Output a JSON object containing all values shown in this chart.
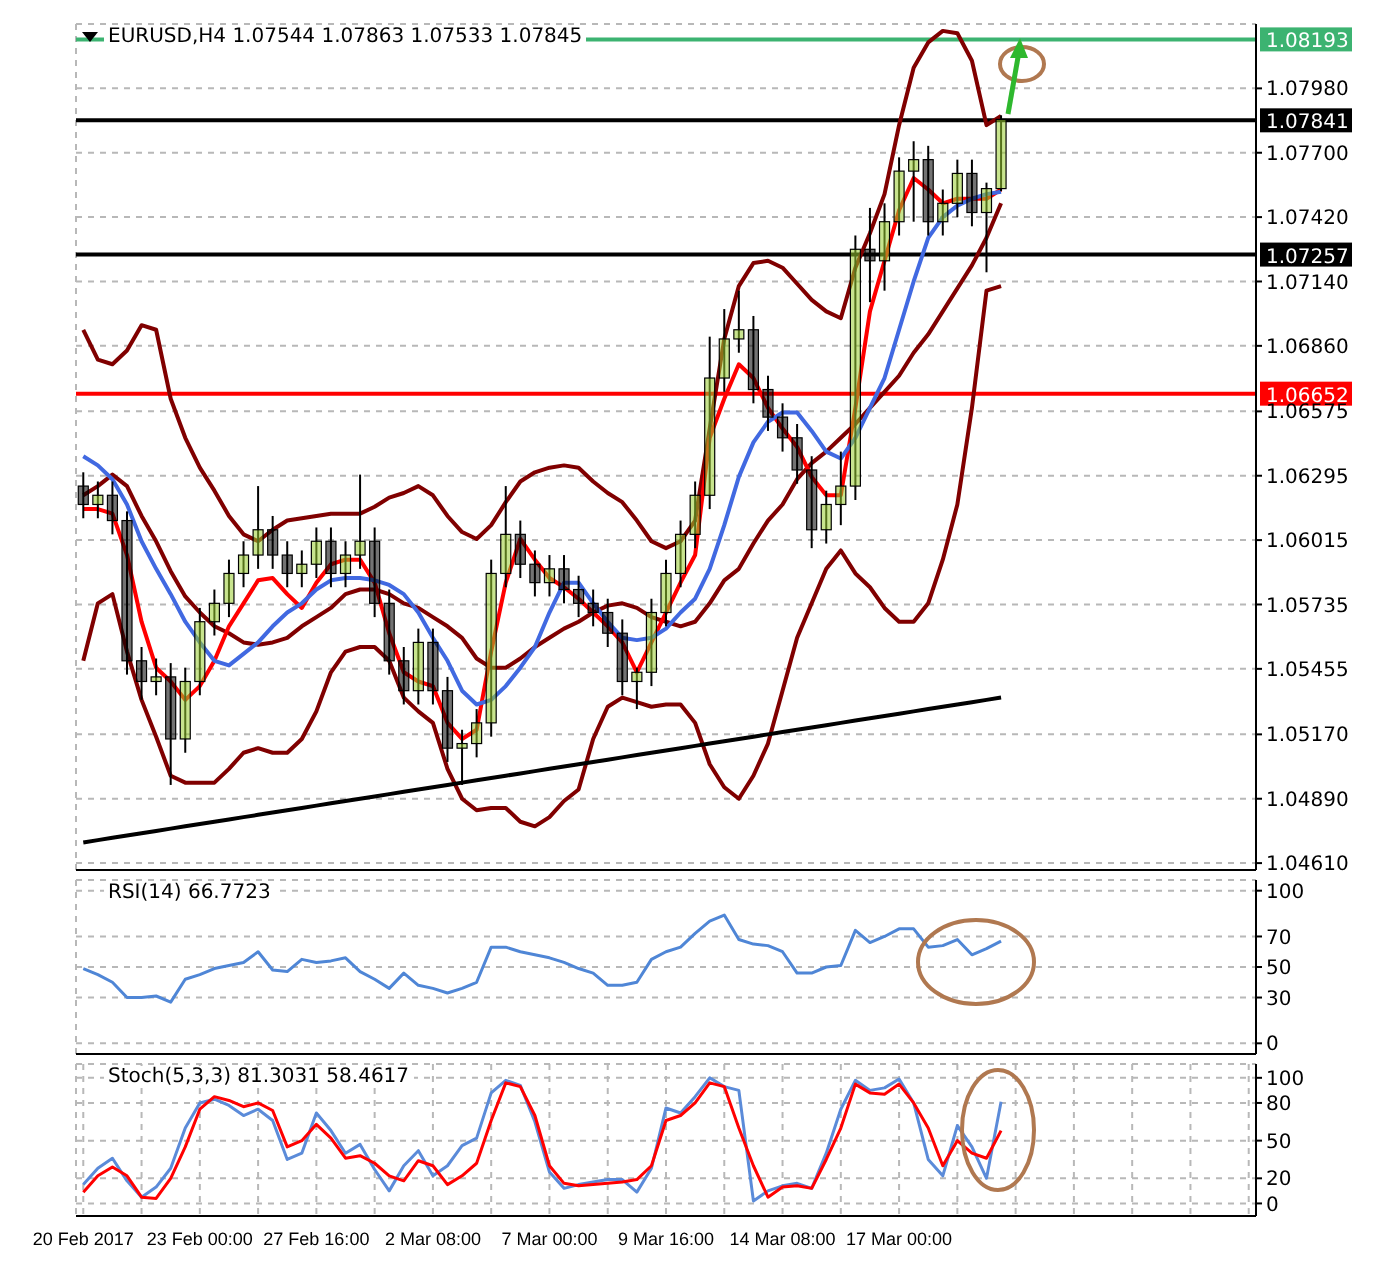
{
  "chart_data": [
    {
      "type": "candlestick",
      "title": "EURUSD,H4 1.07544 1.07863 1.07533 1.07845",
      "categories": [
        null,
        null,
        null,
        null,
        null,
        null,
        null,
        null,
        null,
        null,
        null,
        null,
        null,
        null,
        null,
        null,
        null,
        null,
        null,
        null,
        null,
        null,
        null,
        null,
        null,
        null,
        null,
        null,
        null,
        null,
        null,
        null,
        null,
        null,
        null,
        null,
        null,
        null,
        null,
        null,
        null,
        null,
        null,
        null,
        null,
        null,
        null,
        null,
        null,
        null,
        null,
        null,
        null,
        null,
        null,
        null,
        null,
        null,
        null,
        null,
        null,
        null,
        null,
        null
      ],
      "ohlc": [
        [
          1.0625,
          1.0631,
          1.0611,
          1.0617
        ],
        [
          1.0617,
          1.0627,
          1.0611,
          1.0621
        ],
        [
          1.0621,
          1.0627,
          1.0604,
          1.061
        ],
        [
          1.061,
          1.0614,
          1.0543,
          1.0549
        ],
        [
          1.0549,
          1.0555,
          1.0532,
          1.054
        ],
        [
          1.054,
          1.055,
          1.0534,
          1.0542
        ],
        [
          1.0542,
          1.0548,
          1.0495,
          1.0515
        ],
        [
          1.0515,
          1.0546,
          1.0509,
          1.054
        ],
        [
          1.054,
          1.0572,
          1.0534,
          1.0566
        ],
        [
          1.0566,
          1.058,
          1.056,
          1.0574
        ],
        [
          1.0574,
          1.0593,
          1.0568,
          1.0587
        ],
        [
          1.0587,
          1.0601,
          1.0581,
          1.0595
        ],
        [
          1.0595,
          1.0625,
          1.0589,
          1.0606
        ],
        [
          1.0606,
          1.0612,
          1.0589,
          1.0595
        ],
        [
          1.0595,
          1.0601,
          1.0581,
          1.0587
        ],
        [
          1.0587,
          1.0597,
          1.0581,
          1.0591
        ],
        [
          1.0591,
          1.0607,
          1.0585,
          1.0601
        ],
        [
          1.0601,
          1.0607,
          1.0581,
          1.0587
        ],
        [
          1.0587,
          1.0601,
          1.0581,
          1.0595
        ],
        [
          1.0595,
          1.063,
          1.0589,
          1.0601
        ],
        [
          1.0601,
          1.0607,
          1.0568,
          1.0574
        ],
        [
          1.0574,
          1.058,
          1.0543,
          1.0549
        ],
        [
          1.0549,
          1.0555,
          1.053,
          1.0536
        ],
        [
          1.0536,
          1.0563,
          1.053,
          1.0557
        ],
        [
          1.0557,
          1.0563,
          1.053,
          1.0536
        ],
        [
          1.0536,
          1.0542,
          1.0505,
          1.0511
        ],
        [
          1.0511,
          1.0519,
          1.0495,
          1.0513
        ],
        [
          1.0513,
          1.0528,
          1.0507,
          1.0522
        ],
        [
          1.0522,
          1.0593,
          1.0516,
          1.0587
        ],
        [
          1.0587,
          1.0625,
          1.0581,
          1.0604
        ],
        [
          1.0604,
          1.061,
          1.0585,
          1.0591
        ],
        [
          1.0591,
          1.0597,
          1.0577,
          1.0583
        ],
        [
          1.0583,
          1.0595,
          1.0577,
          1.0589
        ],
        [
          1.0589,
          1.0595,
          1.0574,
          1.058
        ],
        [
          1.058,
          1.0586,
          1.0568,
          1.0574
        ],
        [
          1.0574,
          1.058,
          1.0564,
          1.057
        ],
        [
          1.057,
          1.0576,
          1.0555,
          1.0561
        ],
        [
          1.0561,
          1.0567,
          1.0534,
          1.054
        ],
        [
          1.054,
          1.0546,
          1.0528,
          1.0544
        ],
        [
          1.0544,
          1.0576,
          1.0538,
          1.057
        ],
        [
          1.057,
          1.0593,
          1.0564,
          1.0587
        ],
        [
          1.0587,
          1.061,
          1.0581,
          1.0604
        ],
        [
          1.0604,
          1.0627,
          1.0598,
          1.0621
        ],
        [
          1.0621,
          1.069,
          1.0615,
          1.0672
        ],
        [
          1.0672,
          1.0702,
          1.0666,
          1.0689
        ],
        [
          1.0689,
          1.071,
          1.0683,
          1.0693
        ],
        [
          1.0693,
          1.0699,
          1.0661,
          1.0667
        ],
        [
          1.0667,
          1.0673,
          1.0649,
          1.0655
        ],
        [
          1.0655,
          1.0661,
          1.064,
          1.0646
        ],
        [
          1.0646,
          1.0652,
          1.0626,
          1.0632
        ],
        [
          1.0632,
          1.0638,
          1.0598,
          1.0606
        ],
        [
          1.0606,
          1.0623,
          1.06,
          1.0617
        ],
        [
          1.0617,
          1.064,
          1.0608,
          1.0625
        ],
        [
          1.0625,
          1.0734,
          1.0619,
          1.0728
        ],
        [
          1.0728,
          1.0746,
          1.0705,
          1.0723
        ],
        [
          1.0723,
          1.0748,
          1.071,
          1.074
        ],
        [
          1.074,
          1.0768,
          1.0734,
          1.0762
        ],
        [
          1.0762,
          1.0775,
          1.074,
          1.0767
        ],
        [
          1.0767,
          1.0773,
          1.0734,
          1.074
        ],
        [
          1.074,
          1.0754,
          1.0734,
          1.0748
        ],
        [
          1.0748,
          1.0767,
          1.0742,
          1.0761
        ],
        [
          1.0761,
          1.0767,
          1.0738,
          1.0744
        ],
        [
          1.0744,
          1.0757,
          1.0718,
          1.07544
        ],
        [
          1.07544,
          1.07863,
          1.07533,
          1.07845
        ]
      ],
      "colors": [
        "#000000",
        "#9acd32",
        "#000000",
        "#000000",
        "#000000",
        "#9acd32",
        "#000000",
        "#9acd32",
        "#9acd32",
        "#9acd32",
        "#9acd32",
        "#9acd32",
        "#9acd32",
        "#000000",
        "#000000",
        "#9acd32",
        "#9acd32",
        "#000000",
        "#9acd32",
        "#9acd32",
        "#000000",
        "#000000",
        "#000000",
        "#9acd32",
        "#000000",
        "#000000",
        "#9acd32",
        "#9acd32",
        "#9acd32",
        "#9acd32",
        "#000000",
        "#000000",
        "#9acd32",
        "#000000",
        "#000000",
        "#000000",
        "#000000",
        "#000000",
        "#9acd32",
        "#9acd32",
        "#9acd32",
        "#9acd32",
        "#9acd32",
        "#9acd32",
        "#9acd32",
        "#9acd32",
        "#000000",
        "#000000",
        "#000000",
        "#000000",
        "#000000",
        "#9acd32",
        "#9acd32",
        "#9acd32",
        "#000000",
        "#9acd32",
        "#9acd32",
        "#9acd32",
        "#000000",
        "#9acd32",
        "#9acd32",
        "#000000",
        "#9acd32",
        "#9acd32"
      ],
      "series": [
        {
          "type": "line",
          "color": "#800000",
          "values": [
            1.0693,
            1.068,
            1.0678,
            1.0684,
            1.0695,
            1.0693,
            1.0663,
            1.0646,
            1.0633,
            1.0623,
            1.0612,
            1.0604,
            1.0601,
            1.0606,
            1.061,
            1.0611,
            1.0612,
            1.0613,
            1.0613,
            1.0613,
            1.0616,
            1.062,
            1.0622,
            1.0625,
            1.0621,
            1.0612,
            1.0605,
            1.0602,
            1.0608,
            1.0618,
            1.0627,
            1.0631,
            1.0633,
            1.0634,
            1.0633,
            1.0627,
            1.0622,
            1.0618,
            1.061,
            1.0601,
            1.0598,
            1.0601,
            1.061,
            1.065,
            1.0689,
            1.0712,
            1.0722,
            1.0723,
            1.072,
            1.0713,
            1.0706,
            1.0701,
            1.0698,
            1.072,
            1.0735,
            1.0752,
            1.0782,
            1.0807,
            1.0818,
            1.0823,
            1.0822,
            1.081,
            1.0782,
            1.0786
          ]
        },
        {
          "type": "line",
          "color": "#800000",
          "values": [
            1.0621,
            1.0625,
            1.063,
            1.0625,
            1.0612,
            1.0601,
            1.0588,
            1.0577,
            1.057,
            1.0564,
            1.0561,
            1.0557,
            1.0556,
            1.0557,
            1.0559,
            1.0564,
            1.0568,
            1.0572,
            1.0578,
            1.058,
            1.058,
            1.0578,
            1.0574,
            1.0572,
            1.0568,
            1.0564,
            1.0559,
            1.055,
            1.0546,
            1.0546,
            1.055,
            1.0555,
            1.0559,
            1.0563,
            1.0566,
            1.057,
            1.0573,
            1.0574,
            1.0572,
            1.0568,
            1.0566,
            1.0564,
            1.0566,
            1.0574,
            1.0584,
            1.0589,
            1.06,
            1.061,
            1.0617,
            1.0628,
            1.0635,
            1.064,
            1.0646,
            1.0652,
            1.0659,
            1.0666,
            1.0673,
            1.0683,
            1.0691,
            1.0701,
            1.0711,
            1.0721,
            1.0733,
            1.0748
          ]
        },
        {
          "type": "line",
          "color": "#800000",
          "values": [
            1.0549,
            1.0574,
            1.0578,
            1.0553,
            1.0532,
            1.0516,
            1.0499,
            1.0496,
            1.0496,
            1.0496,
            1.0502,
            1.0509,
            1.0511,
            1.0509,
            1.0509,
            1.0515,
            1.0527,
            1.0544,
            1.0553,
            1.0555,
            1.0555,
            1.0549,
            1.0533,
            1.0527,
            1.0522,
            1.0502,
            1.0489,
            1.0484,
            1.0485,
            1.0485,
            1.0479,
            1.0477,
            1.0481,
            1.0488,
            1.0493,
            1.0515,
            1.0529,
            1.0533,
            1.0531,
            1.0529,
            1.053,
            1.053,
            1.0522,
            1.0504,
            1.0494,
            1.0489,
            1.0499,
            1.0513,
            1.0536,
            1.0559,
            1.0574,
            1.0589,
            1.0597,
            1.0587,
            1.0581,
            1.0572,
            1.0566,
            1.0566,
            1.0574,
            1.0593,
            1.0617,
            1.0659,
            1.071,
            1.0712
          ]
        },
        {
          "type": "line",
          "color": "#ff0000",
          "values": [
            1.0615,
            1.0615,
            1.0613,
            1.0595,
            1.0566,
            1.0546,
            1.054,
            1.0532,
            1.0538,
            1.0549,
            1.0564,
            1.0574,
            1.0584,
            1.0585,
            1.0578,
            1.0572,
            1.0583,
            1.0591,
            1.0593,
            1.0593,
            1.0583,
            1.0561,
            1.0544,
            1.054,
            1.0538,
            1.0522,
            1.0515,
            1.0519,
            1.0553,
            1.0583,
            1.0602,
            1.0593,
            1.0585,
            1.0581,
            1.0576,
            1.057,
            1.0564,
            1.0557,
            1.0544,
            1.0557,
            1.057,
            1.0583,
            1.0595,
            1.0646,
            1.0663,
            1.0678,
            1.0672,
            1.0659,
            1.065,
            1.0642,
            1.0629,
            1.0621,
            1.0621,
            1.0659,
            1.0701,
            1.0723,
            1.0745,
            1.0759,
            1.0754,
            1.0748,
            1.075,
            1.075,
            1.075,
            1.0754
          ]
        },
        {
          "type": "line",
          "color": "#4169e1",
          "values": [
            1.0638,
            1.0634,
            1.0628,
            1.0617,
            1.0601,
            1.0589,
            1.0578,
            1.0566,
            1.0557,
            1.0549,
            1.0547,
            1.0552,
            1.0557,
            1.0564,
            1.057,
            1.0574,
            1.058,
            1.0584,
            1.0585,
            1.0585,
            1.0584,
            1.0582,
            1.0578,
            1.057,
            1.0559,
            1.0549,
            1.0536,
            1.053,
            1.0532,
            1.0538,
            1.0546,
            1.0555,
            1.057,
            1.0583,
            1.0583,
            1.0574,
            1.0566,
            1.0559,
            1.0558,
            1.0559,
            1.0563,
            1.057,
            1.0576,
            1.0589,
            1.0608,
            1.0629,
            1.0644,
            1.0653,
            1.0657,
            1.0657,
            1.0649,
            1.064,
            1.0637,
            1.0646,
            1.0659,
            1.0672,
            1.0693,
            1.0714,
            1.0733,
            1.0742,
            1.0747,
            1.075,
            1.0752,
            1.0753
          ]
        },
        {
          "type": "line",
          "color": "#000000",
          "values": [
            1.047,
            1.0471,
            1.0472,
            1.0473,
            1.0474,
            1.0475,
            1.0476,
            1.0477,
            1.0478,
            1.0479,
            1.048,
            1.0481,
            1.0482,
            1.0483,
            1.0484,
            1.0485,
            1.0486,
            1.0487,
            1.0488,
            1.0489,
            1.049,
            1.0491,
            1.0492,
            1.0493,
            1.0494,
            1.0495,
            1.0496,
            1.0497,
            1.0498,
            1.0499,
            1.05,
            1.0501,
            1.0502,
            1.0503,
            1.0504,
            1.0505,
            1.0506,
            1.0507,
            1.0508,
            1.0509,
            1.051,
            1.0511,
            1.0512,
            1.0513,
            1.0514,
            1.0515,
            1.0516,
            1.0517,
            1.0518,
            1.0519,
            1.052,
            1.0521,
            1.0522,
            1.0523,
            1.0524,
            1.0525,
            1.0526,
            1.0527,
            1.0528,
            1.0529,
            1.053,
            1.0531,
            1.0532,
            1.0533
          ]
        }
      ],
      "ylim": [
        1.0458,
        1.0826
      ],
      "yticks": [
        {
          "value": 1.0461,
          "label": "1.04610"
        },
        {
          "value": 1.0489,
          "label": "1.04890"
        },
        {
          "value": 1.0517,
          "label": "1.05170"
        },
        {
          "value": 1.05455,
          "label": "1.05455"
        },
        {
          "value": 1.05735,
          "label": "1.05735"
        },
        {
          "value": 1.06015,
          "label": "1.06015"
        },
        {
          "value": 1.06295,
          "label": "1.06295"
        },
        {
          "value": 1.06575,
          "label": "1.06575"
        },
        {
          "value": 1.0686,
          "label": "1.06860"
        },
        {
          "value": 1.0714,
          "label": "1.07140"
        },
        {
          "value": 1.0742,
          "label": "1.07420"
        },
        {
          "value": 1.077,
          "label": "1.07700"
        },
        {
          "value": 1.0798,
          "label": "1.07980"
        }
      ],
      "ref_lines": [
        {
          "axis": "y",
          "value": 1.08193,
          "label": "1.08193",
          "color": "#3cb371"
        },
        {
          "axis": "y",
          "value": 1.07841,
          "label": "1.07841",
          "color": "#000000"
        },
        {
          "axis": "y",
          "value": 1.07257,
          "label": "1.07257",
          "color": "#000000"
        },
        {
          "axis": "y",
          "value": 1.06652,
          "label": "1.06652",
          "color": "#ff0000"
        }
      ],
      "grid": true,
      "tick_labels": "y"
    },
    {
      "type": "line",
      "title": "RSI(14) 66.7723",
      "categories": [
        null,
        null,
        null,
        null,
        null,
        null,
        null,
        null,
        null,
        null,
        null,
        null,
        null,
        null,
        null,
        null,
        null,
        null,
        null,
        null,
        null,
        null,
        null,
        null,
        null,
        null,
        null,
        null,
        null,
        null,
        null,
        null,
        null,
        null,
        null,
        null,
        null,
        null,
        null,
        null,
        null,
        null,
        null,
        null,
        null,
        null,
        null,
        null,
        null,
        null,
        null,
        null,
        null,
        null,
        null,
        null,
        null,
        null,
        null,
        null,
        null,
        null,
        null,
        null
      ],
      "series": [
        {
          "type": "line",
          "color": "#4f86d6",
          "values": [
            49,
            45,
            40,
            30,
            30,
            31,
            27,
            42,
            45,
            49,
            51,
            53,
            60,
            48,
            47,
            55,
            53,
            54,
            56,
            47,
            42,
            36,
            46,
            38,
            36,
            33,
            36,
            40,
            63,
            63,
            60,
            58,
            56,
            53,
            49,
            46,
            38,
            38,
            40,
            55,
            60,
            63,
            72,
            80,
            84,
            68,
            65,
            64,
            60,
            46,
            46,
            50,
            51,
            74,
            66,
            70,
            75,
            75,
            63,
            64,
            68,
            58,
            62,
            67
          ]
        }
      ],
      "ylim": [
        -7,
        107
      ],
      "yticks": [
        0,
        30,
        50,
        70,
        100
      ],
      "grid": true,
      "tick_labels": "y"
    },
    {
      "type": "line",
      "title": "Stoch(5,3,3) 81.3031 58.4617",
      "categories": [
        "20 Feb 2017",
        null,
        null,
        null,
        null,
        null,
        null,
        null,
        "23 Feb 00:00",
        null,
        null,
        null,
        null,
        null,
        null,
        null,
        "27 Feb 16:00",
        null,
        null,
        null,
        null,
        null,
        null,
        null,
        "2 Mar 08:00",
        null,
        null,
        null,
        null,
        null,
        null,
        null,
        "7 Mar 00:00",
        null,
        null,
        null,
        null,
        null,
        null,
        null,
        "9 Mar 16:00",
        null,
        null,
        null,
        null,
        null,
        null,
        null,
        "14 Mar 08:00",
        null,
        null,
        null,
        null,
        null,
        null,
        null,
        "17 Mar 00:00",
        null,
        null,
        null,
        null,
        null,
        null,
        null
      ],
      "series": [
        {
          "type": "line",
          "color": "#5b8bd9",
          "values": [
            15,
            28,
            36,
            18,
            5,
            13,
            28,
            60,
            80,
            83,
            78,
            70,
            75,
            66,
            35,
            40,
            72,
            58,
            40,
            47,
            27,
            10,
            30,
            42,
            22,
            30,
            46,
            52,
            88,
            98,
            94,
            65,
            25,
            12,
            15,
            17,
            19,
            19,
            9,
            28,
            76,
            72,
            85,
            100,
            93,
            90,
            2,
            10,
            14,
            16,
            12,
            40,
            75,
            98,
            90,
            92,
            99,
            80,
            35,
            22,
            62,
            45,
            20,
            81
          ]
        },
        {
          "type": "line",
          "color": "#ff0000",
          "values": [
            9,
            22,
            29,
            22,
            5,
            4,
            20,
            45,
            75,
            85,
            82,
            77,
            80,
            74,
            45,
            50,
            63,
            52,
            36,
            38,
            32,
            22,
            18,
            34,
            30,
            15,
            22,
            32,
            66,
            96,
            93,
            70,
            30,
            16,
            14,
            15,
            16,
            17,
            19,
            30,
            66,
            70,
            80,
            96,
            93,
            60,
            30,
            5,
            13,
            14,
            12,
            35,
            60,
            95,
            88,
            87,
            95,
            80,
            60,
            30,
            50,
            40,
            36,
            58
          ]
        }
      ],
      "ylim": [
        -10,
        111
      ],
      "yticks": [
        0,
        20,
        50,
        80,
        100
      ],
      "grid": true
    }
  ]
}
